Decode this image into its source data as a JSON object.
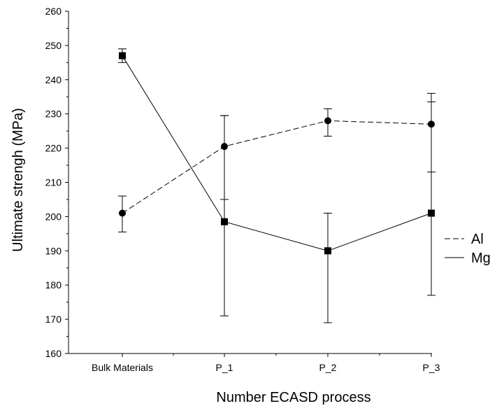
{
  "chart_data": {
    "type": "line",
    "xlabel": "Number ECASD process",
    "ylabel": "Ultimate strengh (MPa)",
    "categories": [
      "Bulk Materials",
      "P_1",
      "P_2",
      "P_3"
    ],
    "ylim": [
      160,
      260
    ],
    "yticks": [
      160,
      170,
      180,
      190,
      200,
      210,
      220,
      230,
      240,
      250,
      260
    ],
    "grid": false,
    "legend": "right",
    "series": [
      {
        "name": "Al",
        "marker": "circle",
        "line_style": "dashed",
        "values": [
          201,
          220.5,
          228,
          227
        ],
        "error_low": [
          195.5,
          205,
          223.5,
          213
        ],
        "error_high": [
          206,
          229.5,
          231.5,
          233.5
        ]
      },
      {
        "name": "Mg",
        "marker": "square",
        "line_style": "solid",
        "values": [
          247,
          198.5,
          190,
          201
        ],
        "error_low": [
          245,
          171,
          169,
          177
        ],
        "error_high": [
          249,
          229.5,
          201,
          236
        ]
      }
    ]
  }
}
